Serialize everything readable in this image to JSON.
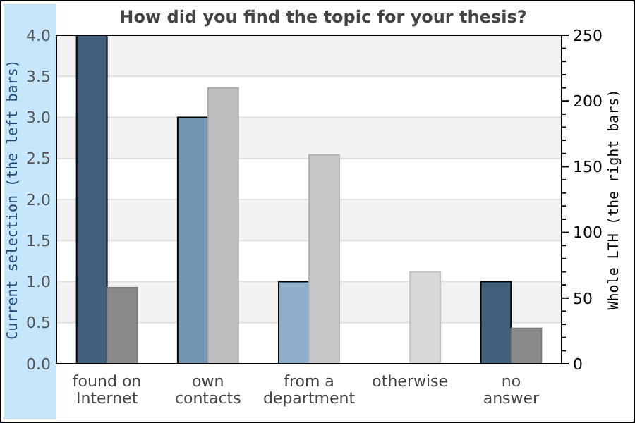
{
  "chart_data": {
    "type": "bar",
    "title": "How did you find the topic for your thesis?",
    "categories": [
      "found on\nInternet",
      "own\ncontacts",
      "from a\ndepartment",
      "otherwise",
      "no\nanswer"
    ],
    "series": [
      {
        "colors": [
          "#3f5f7a",
          "#7496b1",
          "#8fafca",
          null,
          "#3f5f7a"
        ],
        "values": [
          4,
          3,
          1,
          0,
          1
        ]
      },
      {
        "colors": [
          "#8a8a8a",
          "#bdbdbd",
          "#c8c8c8",
          "#d8d8d8",
          "#8a8a8a"
        ],
        "values": [
          58,
          210,
          159,
          70,
          27
        ],
        "axis": "y2"
      }
    ],
    "ylabel": "Current selection (the left bars)",
    "y2label": "Whole LTH (the right bars)",
    "ylim": [
      0,
      4
    ],
    "yticks": [
      {
        "value": 0,
        "label": "0.0"
      },
      {
        "value": 0.5,
        "label": "0.5"
      },
      {
        "value": 1,
        "label": "1.0"
      },
      {
        "value": 1.5,
        "label": "1.5"
      },
      {
        "value": 2,
        "label": "2.0"
      },
      {
        "value": 2.5,
        "label": "2.5"
      },
      {
        "value": 3,
        "label": "3.0"
      },
      {
        "value": 3.5,
        "label": "3.5"
      },
      {
        "value": 4,
        "label": "4.0"
      }
    ],
    "y2lim": [
      0,
      250
    ],
    "y2ticks": [
      0,
      {
        "value": 10,
        "label": null
      },
      {
        "value": 20,
        "label": null
      },
      {
        "value": 30,
        "label": null
      },
      {
        "value": 40,
        "label": null
      },
      50,
      {
        "value": 60,
        "label": null
      },
      {
        "value": 70,
        "label": null
      },
      {
        "value": 80,
        "label": null
      },
      {
        "value": 90,
        "label": null
      },
      100,
      {
        "value": 110,
        "label": null
      },
      {
        "value": 120,
        "label": null
      },
      {
        "value": 130,
        "label": null
      },
      {
        "value": 140,
        "label": null
      },
      150,
      {
        "value": 160,
        "label": null
      },
      {
        "value": 170,
        "label": null
      },
      {
        "value": 180,
        "label": null
      },
      {
        "value": 190,
        "label": null
      },
      200,
      {
        "value": 210,
        "label": null
      },
      {
        "value": 220,
        "label": null
      },
      {
        "value": 230,
        "label": null
      },
      {
        "value": 240,
        "label": null
      },
      250
    ],
    "grid": "y"
  }
}
